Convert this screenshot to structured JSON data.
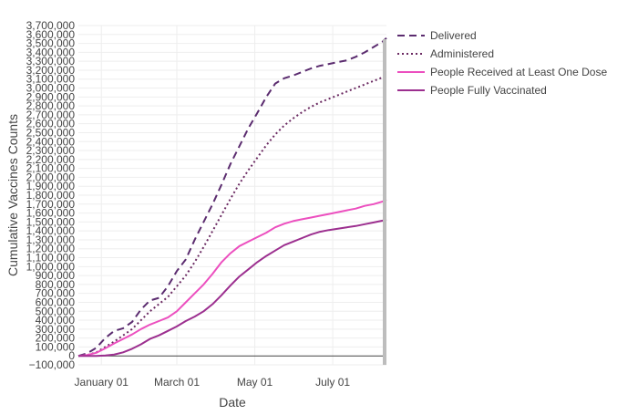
{
  "chart_data": {
    "type": "line",
    "xlabel": "Date",
    "ylabel": "Cumulative Vaccines Counts",
    "x_range": [
      "2020-12-14",
      "2021-08-12"
    ],
    "ylim": [
      -100000,
      3700000
    ],
    "y_tick_step": 100000,
    "x_ticks": [
      {
        "date": "2021-01-01",
        "label": "January 01"
      },
      {
        "date": "2021-03-01",
        "label": "March 01"
      },
      {
        "date": "2021-05-01",
        "label": "May 01"
      },
      {
        "date": "2021-07-01",
        "label": "July 01"
      }
    ],
    "grid": true,
    "legend_position": "top-right",
    "series": [
      {
        "name": "Delivered",
        "color": "#5b2c6f",
        "dash": "dash",
        "points": [
          [
            "2020-12-14",
            0
          ],
          [
            "2020-12-21",
            30000
          ],
          [
            "2020-12-28",
            90000
          ],
          [
            "2021-01-04",
            200000
          ],
          [
            "2021-01-11",
            280000
          ],
          [
            "2021-01-18",
            310000
          ],
          [
            "2021-01-25",
            380000
          ],
          [
            "2021-02-01",
            520000
          ],
          [
            "2021-02-08",
            620000
          ],
          [
            "2021-02-15",
            650000
          ],
          [
            "2021-02-22",
            780000
          ],
          [
            "2021-03-01",
            950000
          ],
          [
            "2021-03-08",
            1080000
          ],
          [
            "2021-03-15",
            1300000
          ],
          [
            "2021-03-22",
            1500000
          ],
          [
            "2021-03-29",
            1700000
          ],
          [
            "2021-04-05",
            1920000
          ],
          [
            "2021-04-12",
            2150000
          ],
          [
            "2021-04-19",
            2350000
          ],
          [
            "2021-04-26",
            2550000
          ],
          [
            "2021-05-03",
            2720000
          ],
          [
            "2021-05-10",
            2900000
          ],
          [
            "2021-05-17",
            3050000
          ],
          [
            "2021-05-24",
            3110000
          ],
          [
            "2021-05-31",
            3140000
          ],
          [
            "2021-06-07",
            3180000
          ],
          [
            "2021-06-14",
            3220000
          ],
          [
            "2021-06-21",
            3250000
          ],
          [
            "2021-06-28",
            3270000
          ],
          [
            "2021-07-05",
            3290000
          ],
          [
            "2021-07-12",
            3310000
          ],
          [
            "2021-07-19",
            3350000
          ],
          [
            "2021-07-26",
            3400000
          ],
          [
            "2021-08-02",
            3460000
          ],
          [
            "2021-08-09",
            3520000
          ],
          [
            "2021-08-12",
            3560000
          ]
        ]
      },
      {
        "name": "Administered",
        "color": "#6b2a62",
        "dash": "dot",
        "points": [
          [
            "2020-12-14",
            0
          ],
          [
            "2020-12-21",
            10000
          ],
          [
            "2020-12-28",
            40000
          ],
          [
            "2021-01-04",
            100000
          ],
          [
            "2021-01-11",
            160000
          ],
          [
            "2021-01-18",
            230000
          ],
          [
            "2021-01-25",
            300000
          ],
          [
            "2021-02-01",
            400000
          ],
          [
            "2021-02-08",
            500000
          ],
          [
            "2021-02-15",
            580000
          ],
          [
            "2021-02-22",
            660000
          ],
          [
            "2021-03-01",
            780000
          ],
          [
            "2021-03-08",
            900000
          ],
          [
            "2021-03-15",
            1050000
          ],
          [
            "2021-03-22",
            1220000
          ],
          [
            "2021-03-29",
            1400000
          ],
          [
            "2021-04-05",
            1580000
          ],
          [
            "2021-04-12",
            1760000
          ],
          [
            "2021-04-19",
            1930000
          ],
          [
            "2021-04-26",
            2080000
          ],
          [
            "2021-05-03",
            2220000
          ],
          [
            "2021-05-10",
            2360000
          ],
          [
            "2021-05-17",
            2480000
          ],
          [
            "2021-05-24",
            2580000
          ],
          [
            "2021-05-31",
            2660000
          ],
          [
            "2021-06-07",
            2730000
          ],
          [
            "2021-06-14",
            2790000
          ],
          [
            "2021-06-21",
            2840000
          ],
          [
            "2021-06-28",
            2880000
          ],
          [
            "2021-07-05",
            2920000
          ],
          [
            "2021-07-12",
            2960000
          ],
          [
            "2021-07-19",
            3000000
          ],
          [
            "2021-07-26",
            3040000
          ],
          [
            "2021-08-02",
            3080000
          ],
          [
            "2021-08-09",
            3120000
          ],
          [
            "2021-08-12",
            3150000
          ]
        ]
      },
      {
        "name": "People Received at Least One Dose",
        "color": "#ec4fbf",
        "dash": "solid",
        "points": [
          [
            "2020-12-14",
            0
          ],
          [
            "2020-12-21",
            10000
          ],
          [
            "2020-12-28",
            35000
          ],
          [
            "2021-01-04",
            85000
          ],
          [
            "2021-01-11",
            140000
          ],
          [
            "2021-01-18",
            190000
          ],
          [
            "2021-01-25",
            240000
          ],
          [
            "2021-02-01",
            300000
          ],
          [
            "2021-02-08",
            350000
          ],
          [
            "2021-02-15",
            390000
          ],
          [
            "2021-02-22",
            430000
          ],
          [
            "2021-03-01",
            500000
          ],
          [
            "2021-03-08",
            600000
          ],
          [
            "2021-03-15",
            700000
          ],
          [
            "2021-03-22",
            800000
          ],
          [
            "2021-03-29",
            920000
          ],
          [
            "2021-04-05",
            1050000
          ],
          [
            "2021-04-12",
            1150000
          ],
          [
            "2021-04-19",
            1230000
          ],
          [
            "2021-04-26",
            1280000
          ],
          [
            "2021-05-03",
            1330000
          ],
          [
            "2021-05-10",
            1380000
          ],
          [
            "2021-05-17",
            1440000
          ],
          [
            "2021-05-24",
            1480000
          ],
          [
            "2021-05-31",
            1510000
          ],
          [
            "2021-06-07",
            1530000
          ],
          [
            "2021-06-14",
            1550000
          ],
          [
            "2021-06-21",
            1570000
          ],
          [
            "2021-06-28",
            1590000
          ],
          [
            "2021-07-05",
            1610000
          ],
          [
            "2021-07-12",
            1630000
          ],
          [
            "2021-07-19",
            1650000
          ],
          [
            "2021-07-26",
            1680000
          ],
          [
            "2021-08-02",
            1700000
          ],
          [
            "2021-08-09",
            1730000
          ],
          [
            "2021-08-12",
            1750000
          ]
        ]
      },
      {
        "name": "People Fully Vaccinated",
        "color": "#9c2f8f",
        "dash": "solid",
        "points": [
          [
            "2020-12-14",
            0
          ],
          [
            "2020-12-28",
            0
          ],
          [
            "2021-01-04",
            5000
          ],
          [
            "2021-01-11",
            15000
          ],
          [
            "2021-01-18",
            40000
          ],
          [
            "2021-01-25",
            80000
          ],
          [
            "2021-02-01",
            130000
          ],
          [
            "2021-02-08",
            190000
          ],
          [
            "2021-02-15",
            230000
          ],
          [
            "2021-02-22",
            280000
          ],
          [
            "2021-03-01",
            330000
          ],
          [
            "2021-03-08",
            390000
          ],
          [
            "2021-03-15",
            440000
          ],
          [
            "2021-03-22",
            500000
          ],
          [
            "2021-03-29",
            580000
          ],
          [
            "2021-04-05",
            680000
          ],
          [
            "2021-04-12",
            790000
          ],
          [
            "2021-04-19",
            890000
          ],
          [
            "2021-04-26",
            970000
          ],
          [
            "2021-05-03",
            1050000
          ],
          [
            "2021-05-10",
            1120000
          ],
          [
            "2021-05-17",
            1180000
          ],
          [
            "2021-05-24",
            1240000
          ],
          [
            "2021-05-31",
            1280000
          ],
          [
            "2021-06-07",
            1320000
          ],
          [
            "2021-06-14",
            1360000
          ],
          [
            "2021-06-21",
            1390000
          ],
          [
            "2021-06-28",
            1410000
          ],
          [
            "2021-07-05",
            1425000
          ],
          [
            "2021-07-12",
            1440000
          ],
          [
            "2021-07-19",
            1455000
          ],
          [
            "2021-07-26",
            1475000
          ],
          [
            "2021-08-02",
            1495000
          ],
          [
            "2021-08-09",
            1515000
          ],
          [
            "2021-08-12",
            1530000
          ]
        ]
      }
    ]
  }
}
